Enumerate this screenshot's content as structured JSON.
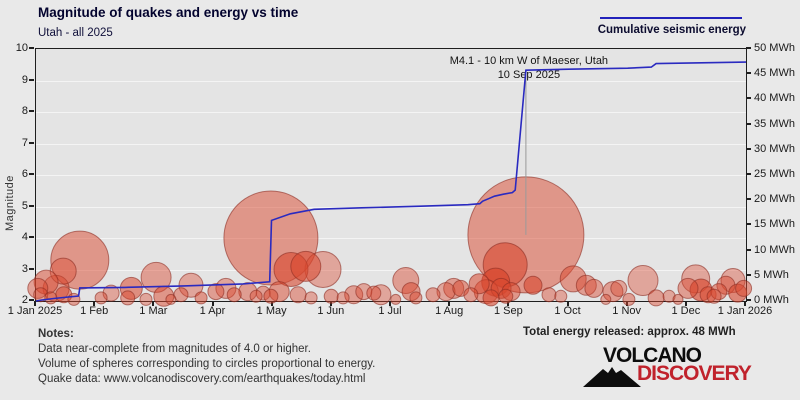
{
  "header": {
    "title": "Magnitude of quakes and energy vs time",
    "subtitle": "Utah - all 2025"
  },
  "legend": {
    "label": "Cumulative seismic energy",
    "line_color": "#2222bb"
  },
  "annotation": {
    "line1": "M4.1 - 10 km W of Maeser, Utah",
    "line2": "10 Sep 2025",
    "anchor_month": 8.28
  },
  "footer": {
    "notes_title": "Notes:",
    "notes": [
      "Data near-complete from magnitudes of 4.0 or higher.",
      "Volume of spheres corresponding to circles proportional to energy.",
      "Quake data: www.volcanodiscovery.com/earthquakes/today.html"
    ],
    "total_energy": "Total energy released: approx. 48 MWh"
  },
  "logo": {
    "word1": "VOLCANO",
    "word2": "DISCOVERY",
    "accent": "#c0222c",
    "icon": "volcano-icon"
  },
  "chart_data": {
    "type": "bubble+line",
    "title": "Magnitude of quakes and energy vs time",
    "x_axis": {
      "range_months": [
        0,
        12
      ],
      "tick_labels": [
        "1 Jan 2025",
        "1 Feb",
        "1 Mar",
        "1 Apr",
        "1 May",
        "1 Jun",
        "1 Jul",
        "1 Aug",
        "1 Sep",
        "1 Oct",
        "1 Nov",
        "1 Dec",
        "1 Jan 2026"
      ]
    },
    "y_left": {
      "label": "Magnitude",
      "range": [
        2,
        10
      ],
      "ticks": [
        2,
        3,
        4,
        5,
        6,
        7,
        8,
        9,
        10
      ],
      "grid": "integer magnitudes"
    },
    "y_right": {
      "range_mwh": [
        0,
        50
      ],
      "tick_step": 5,
      "tick_labels": [
        "0 MWh",
        "5 MWh",
        "10 MWh",
        "15 MWh",
        "20 MWh",
        "25 MWh",
        "30 MWh",
        "35 MWh",
        "40 MWh",
        "45 MWh",
        "50 MWh"
      ]
    },
    "colors": {
      "plot_bg": "#e4e4e4",
      "grid": "#f4f4f4",
      "axis": "#1f1f1f",
      "energy_line": "#2a2ac0",
      "bubble_fill": "#d9472e",
      "bubble_stroke": "rgba(140,45,35,0.6)",
      "leader_line": "#9a9a9a"
    },
    "quakes_note": "each item = [month(0-12), magnitude, radius_px, fill_opacity]",
    "quakes": [
      [
        0.03,
        2.4,
        10,
        0.45
      ],
      [
        0.08,
        2.2,
        7,
        0.4
      ],
      [
        0.17,
        2.6,
        12,
        0.5
      ],
      [
        0.25,
        2.1,
        6,
        0.45
      ],
      [
        0.34,
        2.4,
        13,
        0.45
      ],
      [
        0.46,
        2.95,
        13,
        0.4
      ],
      [
        0.47,
        2.2,
        8,
        0.55
      ],
      [
        0.64,
        2.05,
        6,
        0.45
      ],
      [
        0.74,
        3.3,
        29,
        0.5
      ],
      [
        1.1,
        2.1,
        6,
        0.45
      ],
      [
        1.27,
        2.25,
        8,
        0.4
      ],
      [
        1.55,
        2.1,
        7,
        0.45
      ],
      [
        1.61,
        2.4,
        11,
        0.55
      ],
      [
        1.86,
        2.05,
        6,
        0.4
      ],
      [
        2.03,
        2.75,
        15,
        0.45
      ],
      [
        2.16,
        2.15,
        10,
        0.5
      ],
      [
        2.28,
        2.05,
        5,
        0.4
      ],
      [
        2.45,
        2.2,
        7,
        0.45
      ],
      [
        2.62,
        2.5,
        12,
        0.4
      ],
      [
        2.79,
        2.1,
        6,
        0.5
      ],
      [
        3.04,
        2.3,
        8,
        0.45
      ],
      [
        3.21,
        2.4,
        10,
        0.4
      ],
      [
        3.35,
        2.2,
        7,
        0.5
      ],
      [
        3.58,
        2.3,
        9,
        0.45
      ],
      [
        3.72,
        2.15,
        6,
        0.4
      ],
      [
        3.84,
        2.25,
        7,
        0.45
      ],
      [
        3.97,
        4.0,
        47,
        0.5
      ],
      [
        4.11,
        2.3,
        10,
        0.5
      ],
      [
        4.31,
        3.0,
        17,
        0.6
      ],
      [
        4.43,
        2.2,
        8,
        0.45
      ],
      [
        3.97,
        2.15,
        7,
        0.5
      ],
      [
        4.56,
        3.1,
        15,
        0.55
      ],
      [
        4.65,
        2.1,
        6,
        0.4
      ],
      [
        4.85,
        3.0,
        18,
        0.4
      ],
      [
        4.99,
        2.15,
        7,
        0.45
      ],
      [
        5.19,
        2.1,
        6,
        0.4
      ],
      [
        5.37,
        2.2,
        9,
        0.45
      ],
      [
        5.54,
        2.3,
        8,
        0.4
      ],
      [
        5.71,
        2.25,
        7,
        0.45
      ],
      [
        5.83,
        2.2,
        10,
        0.4
      ],
      [
        6.08,
        2.05,
        5,
        0.45
      ],
      [
        6.25,
        2.65,
        13,
        0.45
      ],
      [
        6.34,
        2.3,
        9,
        0.5
      ],
      [
        6.42,
        2.1,
        6,
        0.45
      ],
      [
        6.71,
        2.2,
        7,
        0.45
      ],
      [
        6.93,
        2.3,
        9,
        0.4
      ],
      [
        7.06,
        2.4,
        10,
        0.45
      ],
      [
        7.18,
        2.4,
        8,
        0.5
      ],
      [
        7.35,
        2.2,
        7,
        0.45
      ],
      [
        7.49,
        2.55,
        10,
        0.55
      ],
      [
        7.61,
        2.3,
        12,
        0.5
      ],
      [
        7.69,
        2.1,
        8,
        0.6
      ],
      [
        7.77,
        2.6,
        14,
        0.7
      ],
      [
        7.86,
        2.4,
        10,
        0.6
      ],
      [
        7.94,
        2.15,
        7,
        0.55
      ],
      [
        8.03,
        2.3,
        9,
        0.5
      ],
      [
        8.28,
        4.1,
        58,
        0.5
      ],
      [
        7.93,
        3.15,
        22,
        0.6
      ],
      [
        8.4,
        2.5,
        9,
        0.6
      ],
      [
        8.67,
        2.2,
        7,
        0.45
      ],
      [
        8.87,
        2.15,
        6,
        0.4
      ],
      [
        9.08,
        2.7,
        13,
        0.5
      ],
      [
        9.3,
        2.5,
        10,
        0.45
      ],
      [
        9.43,
        2.4,
        9,
        0.45
      ],
      [
        9.63,
        2.05,
        5,
        0.4
      ],
      [
        9.75,
        2.3,
        10,
        0.45
      ],
      [
        9.85,
        2.4,
        8,
        0.4
      ],
      [
        10.02,
        2.05,
        6,
        0.45
      ],
      [
        10.26,
        2.65,
        15,
        0.4
      ],
      [
        10.48,
        2.1,
        8,
        0.45
      ],
      [
        10.7,
        2.15,
        6,
        0.4
      ],
      [
        10.85,
        2.05,
        5,
        0.45
      ],
      [
        11.02,
        2.4,
        10,
        0.45
      ],
      [
        11.15,
        2.7,
        14,
        0.4
      ],
      [
        11.24,
        2.35,
        11,
        0.65
      ],
      [
        11.36,
        2.2,
        8,
        0.5
      ],
      [
        11.46,
        2.15,
        7,
        0.45
      ],
      [
        11.54,
        2.3,
        8,
        0.5
      ],
      [
        11.66,
        2.5,
        9,
        0.45
      ],
      [
        11.78,
        2.65,
        12,
        0.4
      ],
      [
        11.86,
        2.25,
        9,
        0.6
      ],
      [
        11.96,
        2.4,
        8,
        0.5
      ]
    ],
    "energy_line_note": "each item = [month(0-12), cumulative MWh]",
    "energy_line": [
      [
        0,
        0
      ],
      [
        0.1,
        0.2
      ],
      [
        0.3,
        0.5
      ],
      [
        0.55,
        0.8
      ],
      [
        0.72,
        1.0
      ],
      [
        0.74,
        2.6
      ],
      [
        1.5,
        2.7
      ],
      [
        2.5,
        3.0
      ],
      [
        3.5,
        3.4
      ],
      [
        3.95,
        3.8
      ],
      [
        3.98,
        16.0
      ],
      [
        4.3,
        17.3
      ],
      [
        4.7,
        18.2
      ],
      [
        5.5,
        18.5
      ],
      [
        6.5,
        18.8
      ],
      [
        7.3,
        19.1
      ],
      [
        7.5,
        19.3
      ],
      [
        7.55,
        19.8
      ],
      [
        7.65,
        20.3
      ],
      [
        7.75,
        20.8
      ],
      [
        7.9,
        21.2
      ],
      [
        8.05,
        21.5
      ],
      [
        8.1,
        22.0
      ],
      [
        8.28,
        45.8
      ],
      [
        9.0,
        46.0
      ],
      [
        10.0,
        46.2
      ],
      [
        10.4,
        46.4
      ],
      [
        10.48,
        47.1
      ],
      [
        11.5,
        47.3
      ],
      [
        12,
        47.4
      ]
    ],
    "total_mwh": 48
  }
}
